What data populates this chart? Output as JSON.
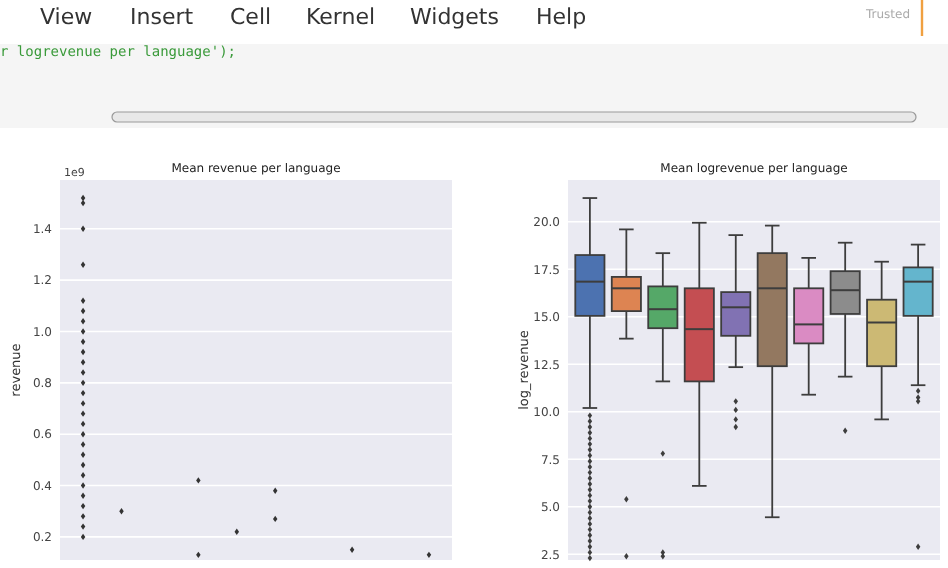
{
  "chart_data": [
    {
      "type": "other",
      "annotations": [
        "View",
        "Insert",
        "Cell",
        "Kernel",
        "Widgets",
        "Help",
        "Trusted",
        "r logrevenue per language');"
      ]
    },
    {
      "type": "scatter",
      "title": "Mean revenue per language",
      "ylabel": "revenue",
      "annotations": [
        "1e9"
      ],
      "categories": [
        null,
        null,
        null,
        null,
        null,
        null,
        null,
        null,
        null,
        null
      ],
      "ylim": [
        0.11,
        1.59
      ],
      "yticks": [
        {
          "value": 0.2,
          "label": "0.2"
        },
        {
          "value": 0.4,
          "label": "0.4"
        },
        {
          "value": 0.6,
          "label": "0.6"
        },
        {
          "value": 0.8,
          "label": "0.8"
        },
        {
          "value": 1.0,
          "label": "1.0"
        },
        {
          "value": 1.2,
          "label": "1.2"
        },
        {
          "value": 1.4,
          "label": "1.4"
        }
      ],
      "tick_labels": "y",
      "grid": "y",
      "marker": "diamond",
      "series": [
        {
          "color": "#333333",
          "values": [
            1.52,
            0.3,
            null,
            0.42,
            0.22,
            0.38,
            null,
            0.15,
            null,
            0.13
          ]
        },
        {
          "color": "#333333",
          "values": [
            1.5,
            null,
            null,
            0.13,
            null,
            0.27,
            null,
            null,
            null,
            null
          ]
        },
        {
          "color": "#333333",
          "values": [
            1.4,
            null,
            null,
            null,
            null,
            null,
            null,
            null,
            null,
            null
          ]
        },
        {
          "color": "#333333",
          "values": [
            1.26,
            null,
            null,
            null,
            null,
            null,
            null,
            null,
            null,
            null
          ]
        },
        {
          "color": "#333333",
          "values": [
            1.12,
            null,
            null,
            null,
            null,
            null,
            null,
            null,
            null,
            null
          ]
        },
        {
          "color": "#333333",
          "values": [
            1.08,
            null,
            null,
            null,
            null,
            null,
            null,
            null,
            null,
            null
          ]
        },
        {
          "color": "#333333",
          "values": [
            1.04,
            null,
            null,
            null,
            null,
            null,
            null,
            null,
            null,
            null
          ]
        },
        {
          "color": "#333333",
          "values": [
            1.0,
            null,
            null,
            null,
            null,
            null,
            null,
            null,
            null,
            null
          ]
        },
        {
          "color": "#333333",
          "values": [
            0.96,
            null,
            null,
            null,
            null,
            null,
            null,
            null,
            null,
            null
          ]
        },
        {
          "color": "#333333",
          "values": [
            0.92,
            null,
            null,
            null,
            null,
            null,
            null,
            null,
            null,
            null
          ]
        },
        {
          "color": "#333333",
          "values": [
            0.88,
            null,
            null,
            null,
            null,
            null,
            null,
            null,
            null,
            null
          ]
        },
        {
          "color": "#333333",
          "values": [
            0.84,
            null,
            null,
            null,
            null,
            null,
            null,
            null,
            null,
            null
          ]
        },
        {
          "color": "#333333",
          "values": [
            0.8,
            null,
            null,
            null,
            null,
            null,
            null,
            null,
            null,
            null
          ]
        },
        {
          "color": "#333333",
          "values": [
            0.76,
            null,
            null,
            null,
            null,
            null,
            null,
            null,
            null,
            null
          ]
        },
        {
          "color": "#333333",
          "values": [
            0.72,
            null,
            null,
            null,
            null,
            null,
            null,
            null,
            null,
            null
          ]
        },
        {
          "color": "#333333",
          "values": [
            0.68,
            null,
            null,
            null,
            null,
            null,
            null,
            null,
            null,
            null
          ]
        },
        {
          "color": "#333333",
          "values": [
            0.64,
            null,
            null,
            null,
            null,
            null,
            null,
            null,
            null,
            null
          ]
        },
        {
          "color": "#333333",
          "values": [
            0.6,
            null,
            null,
            null,
            null,
            null,
            null,
            null,
            null,
            null
          ]
        },
        {
          "color": "#333333",
          "values": [
            0.56,
            null,
            null,
            null,
            null,
            null,
            null,
            null,
            null,
            null
          ]
        },
        {
          "color": "#333333",
          "values": [
            0.52,
            null,
            null,
            null,
            null,
            null,
            null,
            null,
            null,
            null
          ]
        },
        {
          "color": "#333333",
          "values": [
            0.48,
            null,
            null,
            null,
            null,
            null,
            null,
            null,
            null,
            null
          ]
        },
        {
          "color": "#333333",
          "values": [
            0.44,
            null,
            null,
            null,
            null,
            null,
            null,
            null,
            null,
            null
          ]
        },
        {
          "color": "#333333",
          "values": [
            0.4,
            null,
            null,
            null,
            null,
            null,
            null,
            null,
            null,
            null
          ]
        },
        {
          "color": "#333333",
          "values": [
            0.36,
            null,
            null,
            null,
            null,
            null,
            null,
            null,
            null,
            null
          ]
        },
        {
          "color": "#333333",
          "values": [
            0.32,
            null,
            null,
            null,
            null,
            null,
            null,
            null,
            null,
            null
          ]
        },
        {
          "color": "#333333",
          "values": [
            0.28,
            null,
            null,
            null,
            null,
            null,
            null,
            null,
            null,
            null
          ]
        },
        {
          "color": "#333333",
          "values": [
            0.24,
            null,
            null,
            null,
            null,
            null,
            null,
            null,
            null,
            null
          ]
        },
        {
          "color": "#333333",
          "values": [
            0.2,
            null,
            null,
            null,
            null,
            null,
            null,
            null,
            null,
            null
          ]
        }
      ]
    },
    {
      "type": "box",
      "title": "Mean logrevenue per language",
      "ylabel": "log_revenue",
      "categories": [
        null,
        null,
        null,
        null,
        null,
        null,
        null,
        null,
        null,
        null
      ],
      "ylim": [
        2.2,
        22.2
      ],
      "yticks": [
        {
          "value": 2.5,
          "label": "2.5"
        },
        {
          "value": 5,
          "label": "5.0"
        },
        {
          "value": 7.5,
          "label": "7.5"
        },
        {
          "value": 10,
          "label": "10.0"
        },
        {
          "value": 12.5,
          "label": "12.5"
        },
        {
          "value": 15,
          "label": "15.0"
        },
        {
          "value": 17.5,
          "label": "17.5"
        },
        {
          "value": 20,
          "label": "20.0"
        }
      ],
      "tick_labels": "y",
      "grid": "y",
      "colors": [
        "#4c72b0",
        "#dd8452",
        "#55a868",
        "#c44e52",
        "#8172b3",
        "#937860",
        "#da8bc3",
        "#8c8c8c",
        "#ccb974",
        "#64b5cd"
      ],
      "boxes": [
        {
          "low": 10.2,
          "q1": 15.05,
          "median": 16.85,
          "q3": 18.25,
          "high": 21.25,
          "outliers": [
            9.8,
            9.5,
            9.2,
            8.9,
            8.6,
            8.3,
            8.0,
            7.7,
            7.4,
            7.1,
            6.8,
            6.5,
            6.2,
            5.9,
            5.6,
            5.3,
            5.0,
            4.7,
            4.4,
            4.1,
            3.8,
            3.5,
            3.2,
            2.9,
            2.6,
            2.3
          ]
        },
        {
          "low": 13.85,
          "q1": 15.3,
          "median": 16.5,
          "q3": 17.1,
          "high": 19.6,
          "outliers": [
            5.4,
            2.4
          ]
        },
        {
          "low": 11.6,
          "q1": 14.4,
          "median": 15.4,
          "q3": 16.6,
          "high": 18.35,
          "outliers": [
            7.8,
            2.6,
            2.4
          ]
        },
        {
          "low": 6.1,
          "q1": 11.6,
          "median": 14.35,
          "q3": 16.5,
          "high": 19.95
        },
        {
          "low": 12.35,
          "q1": 14.0,
          "median": 15.5,
          "q3": 16.3,
          "high": 19.3,
          "outliers": [
            10.55,
            10.1,
            9.6,
            9.2
          ]
        },
        {
          "low": 4.45,
          "q1": 12.4,
          "median": 16.5,
          "q3": 18.35,
          "high": 19.8
        },
        {
          "low": 10.9,
          "q1": 13.6,
          "median": 14.6,
          "q3": 16.5,
          "high": 18.1
        },
        {
          "low": 11.85,
          "q1": 15.15,
          "median": 16.4,
          "q3": 17.4,
          "high": 18.9,
          "outliers": [
            9.0
          ]
        },
        {
          "low": 9.6,
          "q1": 12.4,
          "median": 14.7,
          "q3": 15.9,
          "high": 17.9
        },
        {
          "low": 11.4,
          "q1": 15.05,
          "median": 16.85,
          "q3": 17.6,
          "high": 18.8,
          "outliers": [
            11.1,
            10.75,
            10.55,
            2.9
          ]
        }
      ]
    }
  ]
}
